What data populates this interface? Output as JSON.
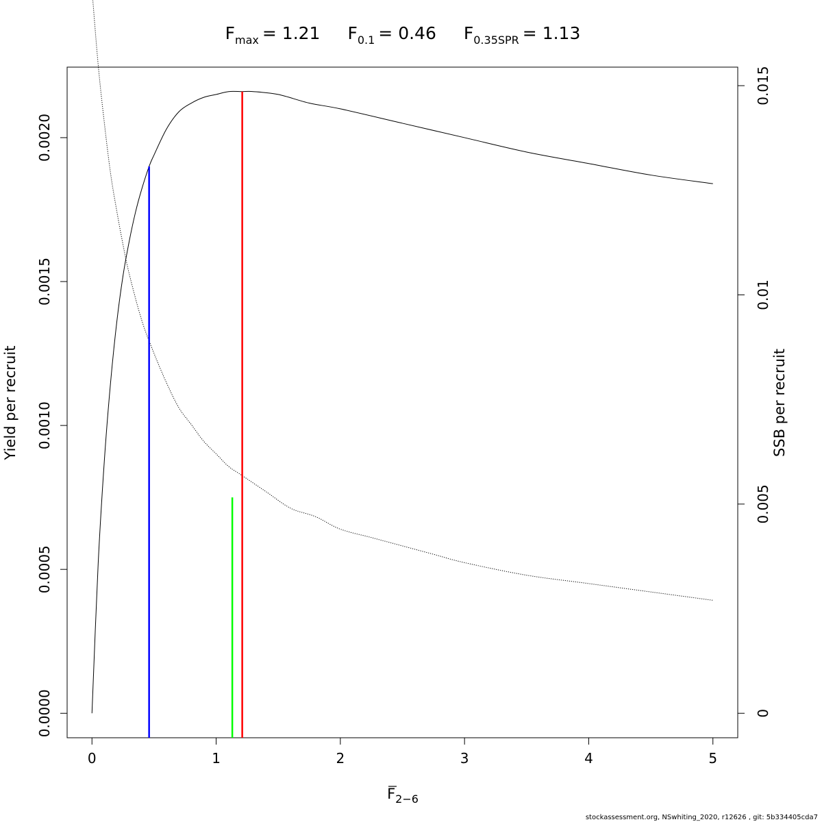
{
  "chart_data": {
    "type": "line",
    "title": {
      "fmax": {
        "symbol": "F",
        "sub": "max",
        "value": "= 1.21"
      },
      "f01": {
        "symbol": "F",
        "sub": "0.1",
        "value": "= 0.46"
      },
      "fspr": {
        "symbol": "F",
        "sub": "0.35SPR",
        "value": "= 1.13"
      }
    },
    "xlabel": {
      "symbol": "F",
      "sub": "2−6"
    },
    "ylabel": "Yield per recruit",
    "y2label": "SSB per recruit",
    "xlim": [
      -0.2,
      5.2
    ],
    "ylim": [
      -8.5e-05,
      0.002245
    ],
    "y2lim": [
      -0.000585,
      0.015443
    ],
    "x_ticks": [
      0,
      1,
      2,
      3,
      4,
      5
    ],
    "x_tick_labels": [
      "0",
      "1",
      "2",
      "3",
      "4",
      "5"
    ],
    "y_ticks": [
      0,
      0.0005,
      0.001,
      0.0015,
      0.002
    ],
    "y_tick_labels": [
      "0.0000",
      "0.0005",
      "0.0010",
      "0.0015",
      "0.0020"
    ],
    "y2_ticks": [
      0,
      0.005,
      0.01,
      0.015
    ],
    "y2_tick_labels": [
      "0",
      "0.005",
      "0.01",
      "0.015"
    ],
    "series": [
      {
        "name": "",
        "axis": "left",
        "style": "solid",
        "color": "#000000",
        "x": [
          0,
          0.05,
          0.1,
          0.15,
          0.2,
          0.25,
          0.3,
          0.35,
          0.4,
          0.46,
          0.5,
          0.6,
          0.7,
          0.8,
          0.9,
          1.0,
          1.1,
          1.21,
          1.3,
          1.5,
          1.75,
          2.0,
          2.5,
          3.0,
          3.5,
          4.0,
          4.5,
          5.0
        ],
        "y": [
          0,
          0.00052,
          0.00088,
          0.00115,
          0.00136,
          0.00152,
          0.00164,
          0.00174,
          0.00182,
          0.0019,
          0.00194,
          0.00203,
          0.00209,
          0.00212,
          0.00214,
          0.00215,
          0.00216,
          0.00216,
          0.00216,
          0.00215,
          0.00212,
          0.0021,
          0.00205,
          0.002,
          0.00195,
          0.00191,
          0.00187,
          0.00184
        ]
      },
      {
        "name": "",
        "axis": "right",
        "style": "dotted",
        "color": "#000000",
        "x": [
          0,
          0.05,
          0.1,
          0.15,
          0.2,
          0.25,
          0.3,
          0.4,
          0.5,
          0.6,
          0.7,
          0.8,
          0.9,
          1.0,
          1.1,
          1.2,
          1.4,
          1.6,
          1.8,
          2.0,
          2.25,
          2.5,
          2.75,
          3.0,
          3.5,
          4.0,
          4.5,
          5.0
        ],
        "y": [
          0.0173,
          0.0155,
          0.0141,
          0.0129,
          0.012,
          0.0112,
          0.0105,
          0.0094,
          0.0086,
          0.0079,
          0.0073,
          0.0069,
          0.0065,
          0.0062,
          0.0059,
          0.0057,
          0.0053,
          0.0049,
          0.0047,
          0.0044,
          0.0042,
          0.004,
          0.0038,
          0.0036,
          0.0033,
          0.0031,
          0.0029,
          0.0027
        ]
      }
    ],
    "vlines": [
      {
        "name": "F0.1",
        "x": 0.46,
        "y_top": 0.0019,
        "color": "#0000ff"
      },
      {
        "name": "F0.35SPR",
        "x": 1.13,
        "y_top": 0.00075,
        "color": "#00ff00"
      },
      {
        "name": "Fmax",
        "x": 1.21,
        "y_top": 0.00216,
        "color": "#ff0000"
      }
    ],
    "grid": false,
    "legend": "none"
  },
  "footer": "stockassessment.org, NSwhiting_2020, r12626 , git: 5b334405cda7"
}
